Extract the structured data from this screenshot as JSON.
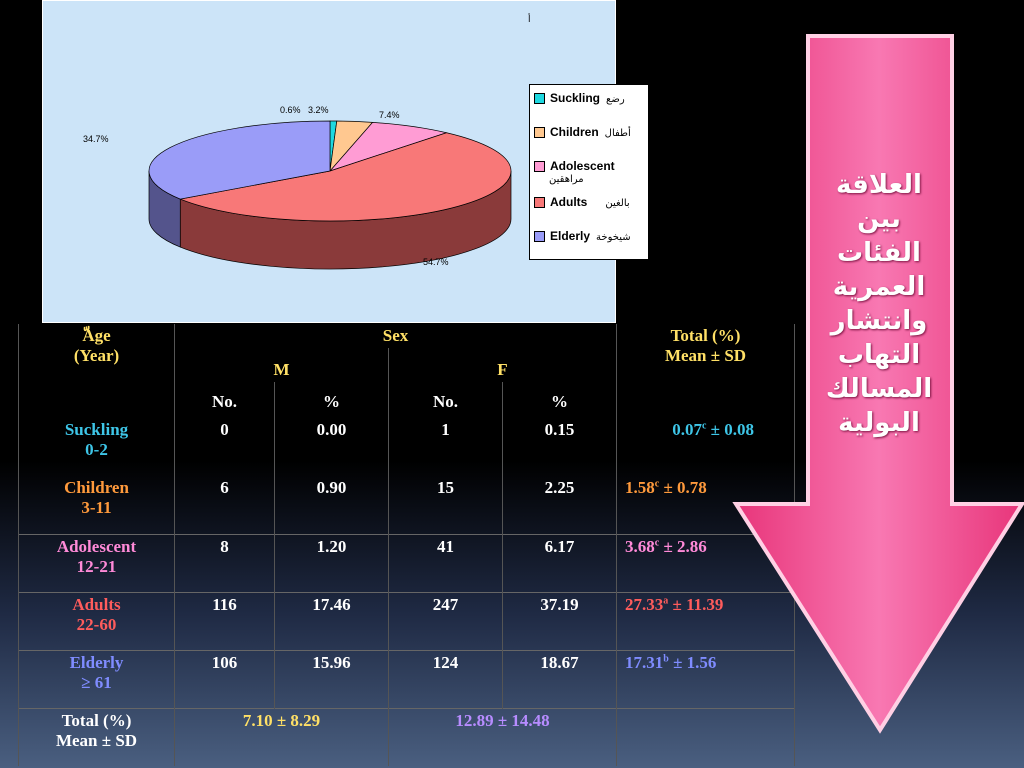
{
  "chart_data": {
    "type": "pie",
    "title": "أ",
    "categories": [
      "Suckling",
      "Children",
      "Adolescent",
      "Adults",
      "Elderly"
    ],
    "values": [
      0.6,
      3.2,
      7.4,
      54.7,
      34.7
    ],
    "labels": [
      "0.6%",
      "3.2%",
      "7.4%",
      "54.7%",
      "34.7%"
    ],
    "colors": [
      "#1ed8e0",
      "#ffc890",
      "#ff9cd4",
      "#f87878",
      "#9a9cf8"
    ],
    "side_colors": [
      "#0e8a90",
      "#b07a48",
      "#b05c8c",
      "#8a3a3a",
      "#54548c"
    ],
    "legend_placement": "right",
    "legend": [
      {
        "en": "Suckling",
        "ar": "رضع"
      },
      {
        "en": "Children",
        "ar": "أطفال"
      },
      {
        "en": "Adolescent",
        "ar": "مراهقين"
      },
      {
        "en": "Adults",
        "ar": "بالغين"
      },
      {
        "en": "Elderly",
        "ar": "شيخوخة"
      }
    ]
  },
  "table": {
    "age_header_line1": "ّAge",
    "age_header_line2": "(Year)",
    "sex_header": "Sex",
    "m_header": "M",
    "f_header": "F",
    "total_header_line1": "Total (%)",
    "total_header_line2": "Mean ± SD",
    "no_label": "No.",
    "pct_label": "%",
    "rows": [
      {
        "name": "Suckling",
        "range": "0-2",
        "m_no": "0",
        "m_pct": "0.00",
        "f_no": "1",
        "f_pct": "0.15",
        "mean": "0.07",
        "sup": "c",
        "sd": " ± 0.08"
      },
      {
        "name": "Children",
        "range": "3-11",
        "m_no": "6",
        "m_pct": "0.90",
        "f_no": "15",
        "f_pct": "2.25",
        "mean": "1.58",
        "sup": "c",
        "sd": " ± 0.78"
      },
      {
        "name": "Adolescent",
        "range": "12-21",
        "m_no": "8",
        "m_pct": "1.20",
        "f_no": "41",
        "f_pct": "6.17",
        "mean": "3.68",
        "sup": "c",
        "sd": " ± 2.86"
      },
      {
        "name": "Adults",
        "range": "22-60",
        "m_no": "116",
        "m_pct": "17.46",
        "f_no": "247",
        "f_pct": "37.19",
        "mean": "27.33",
        "sup": "a",
        "sd": " ± 11.39"
      },
      {
        "name": "Elderly",
        "range": "≥ 61",
        "m_no": "106",
        "m_pct": "15.96",
        "f_no": "124",
        "f_pct": "18.67",
        "mean": "17.31",
        "sup": "b",
        "sd": " ± 1.56"
      }
    ],
    "total_row_line1": "Total (%)",
    "total_row_line2": "Mean ± SD",
    "total_m": "7.10 ± 8.29",
    "total_f": "12.89 ± 14.48"
  },
  "arrow_text": [
    "العلاقة",
    "بين",
    "الفئات",
    "العمرية",
    "وانتشار",
    "التهاب",
    "المسالك",
    "البولية"
  ],
  "colors": {
    "arrow_fill": "#f25a9a",
    "arrow_border": "#ffd0e4"
  }
}
